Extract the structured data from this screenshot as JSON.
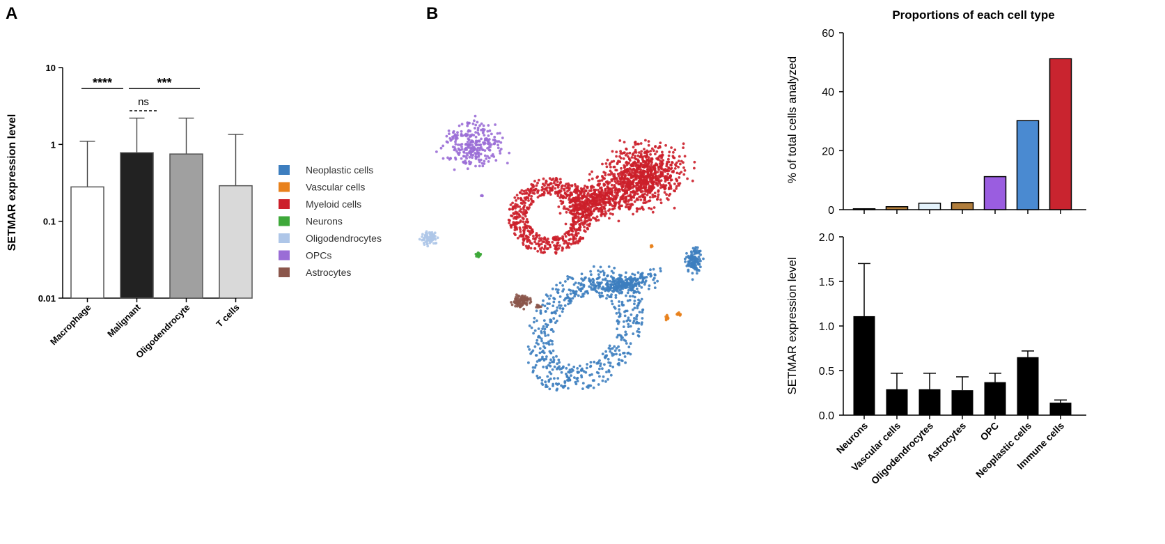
{
  "panels": {
    "a_letter": "A",
    "b_letter": "B"
  },
  "chart_data": [
    {
      "id": "panelA",
      "type": "bar",
      "title": "",
      "ylabel": "SETMAR expression level",
      "yscale": "log",
      "ylim": [
        0.01,
        10
      ],
      "yticks": [
        {
          "value": 10,
          "label": "10"
        },
        {
          "value": 1,
          "label": "1"
        },
        {
          "value": 0.1,
          "label": "0.1"
        },
        {
          "value": 0.01,
          "label": "0.01"
        }
      ],
      "categories": [
        "Macrophage",
        "Malignant",
        "Oligodendrocyte",
        "T cells"
      ],
      "values": [
        0.28,
        0.78,
        0.75,
        0.29
      ],
      "error_upper": [
        1.1,
        2.2,
        2.2,
        1.35
      ],
      "bar_colors": [
        "#ffffff",
        "#222222",
        "#a0a0a0",
        "#d9d9d9"
      ],
      "annotations": [
        {
          "label": "****",
          "from": "Macrophage",
          "to": "Malignant",
          "style": "solid"
        },
        {
          "label": "***",
          "from": "Malignant",
          "to": "T cells",
          "style": "solid"
        },
        {
          "label": "ns",
          "from": "Malignant",
          "to": "Oligodendrocyte",
          "style": "dashed"
        }
      ]
    },
    {
      "id": "tsne",
      "type": "scatter",
      "title": "",
      "legend": [
        {
          "name": "Neoplastic cells",
          "color": "#3d7ebf"
        },
        {
          "name": "Vascular cells",
          "color": "#e8811c"
        },
        {
          "name": "Myeloid cells",
          "color": "#cc1f2a"
        },
        {
          "name": "Neurons",
          "color": "#3ea83a"
        },
        {
          "name": "Oligodendrocytes",
          "color": "#aec6e8"
        },
        {
          "name": "OPCs",
          "color": "#9a6dd6"
        },
        {
          "name": "Astrocytes",
          "color": "#8b564b"
        }
      ]
    },
    {
      "id": "proportions",
      "type": "bar",
      "title": "Proportions of each cell type",
      "ylabel": "% of total cells analyzed",
      "ylim": [
        0,
        60
      ],
      "yticks": [
        0,
        20,
        40,
        60
      ],
      "values": [
        0.3,
        1.0,
        2.2,
        2.4,
        11.2,
        30.2,
        51.2
      ],
      "bar_colors": [
        "#ffffff",
        "#b07d3c",
        "#e4f2fb",
        "#b07d3c",
        "#9a5de0",
        "#4a8ad1",
        "#c9242f"
      ]
    },
    {
      "id": "expression",
      "type": "bar",
      "title": "",
      "ylabel": "SETMAR expression level",
      "ylim": [
        0,
        2.0
      ],
      "yticks": [
        "0.0",
        "0.5",
        "1.0",
        "1.5",
        "2.0"
      ],
      "categories": [
        "Neurons",
        "Vascular cells",
        "Oligodendrocytes",
        "Astrocytes",
        "OPC",
        "Neoplastic cells",
        "Immune cells"
      ],
      "values": [
        1.11,
        0.29,
        0.29,
        0.28,
        0.37,
        0.65,
        0.14
      ],
      "error_upper": [
        1.7,
        0.47,
        0.47,
        0.43,
        0.47,
        0.72,
        0.17
      ],
      "bar_color": "#000000"
    }
  ]
}
